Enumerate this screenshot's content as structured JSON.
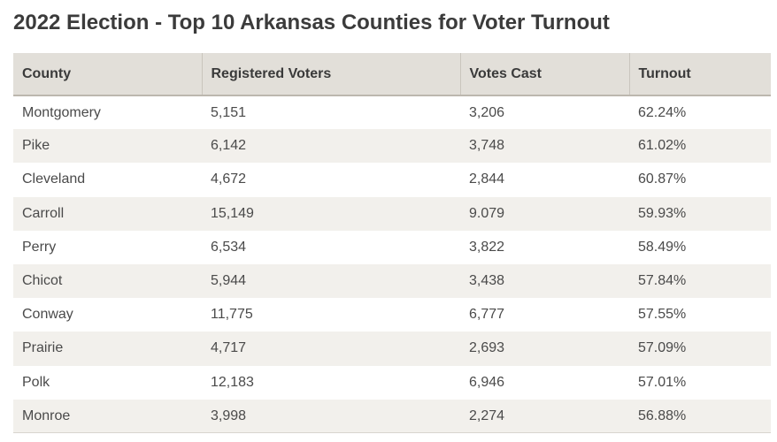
{
  "title": "2022 Election - Top 10 Arkansas Counties for Voter Turnout",
  "table": {
    "headers": [
      "County",
      "Registered Voters",
      "Votes Cast",
      "Turnout"
    ],
    "rows": [
      [
        "Montgomery",
        "5,151",
        "3,206",
        "62.24%"
      ],
      [
        "Pike",
        "6,142",
        "3,748",
        "61.02%"
      ],
      [
        "Cleveland",
        "4,672",
        "2,844",
        "60.87%"
      ],
      [
        "Carroll",
        "15,149",
        "9.079",
        "59.93%"
      ],
      [
        "Perry",
        "6,534",
        "3,822",
        "58.49%"
      ],
      [
        "Chicot",
        "5,944",
        "3,438",
        "57.84%"
      ],
      [
        "Conway",
        "11,775",
        "6,777",
        "57.55%"
      ],
      [
        "Prairie",
        "4,717",
        "2,693",
        "57.09%"
      ],
      [
        "Polk",
        "12,183",
        "6,946",
        "57.01%"
      ],
      [
        "Monroe",
        "3,998",
        "2,274",
        "56.88%"
      ]
    ]
  }
}
